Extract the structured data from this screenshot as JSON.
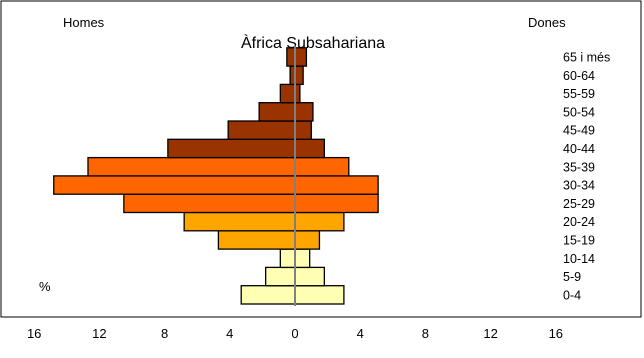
{
  "chart_data": {
    "type": "bar",
    "orientation": "horizontal",
    "subtype": "population-pyramid",
    "title": "Àfrica Subsahariana",
    "left_label": "Homes",
    "right_label": "Dones",
    "unit_label": "%",
    "x_ticks": [
      "16",
      "12",
      "8",
      "4",
      "0",
      "4",
      "8",
      "12",
      "16"
    ],
    "xlim": [
      -16,
      16
    ],
    "categories": [
      "0-4",
      "5-9",
      "10-14",
      "15-19",
      "20-24",
      "25-29",
      "30-34",
      "35-39",
      "40-44",
      "45-49",
      "50-54",
      "55-59",
      "60-64",
      "65 i més"
    ],
    "series": [
      {
        "name": "Homes",
        "values": [
          3.3,
          1.8,
          0.9,
          4.7,
          6.8,
          10.5,
          14.8,
          12.7,
          7.8,
          4.1,
          2.2,
          0.9,
          0.3,
          0.5
        ]
      },
      {
        "name": "Dones",
        "values": [
          3.0,
          1.8,
          0.9,
          1.5,
          3.0,
          5.1,
          5.1,
          3.3,
          1.8,
          1.0,
          1.1,
          0.3,
          0.5,
          0.7
        ]
      }
    ],
    "colors": [
      "#FFFFB3",
      "#FFFFB3",
      "#FFFFB3",
      "#FFA500",
      "#FFA500",
      "#FF6600",
      "#FF6600",
      "#FF6600",
      "#993300",
      "#993300",
      "#993300",
      "#993300",
      "#993300",
      "#993300"
    ],
    "center_line_color": "#808080",
    "grid": false
  }
}
